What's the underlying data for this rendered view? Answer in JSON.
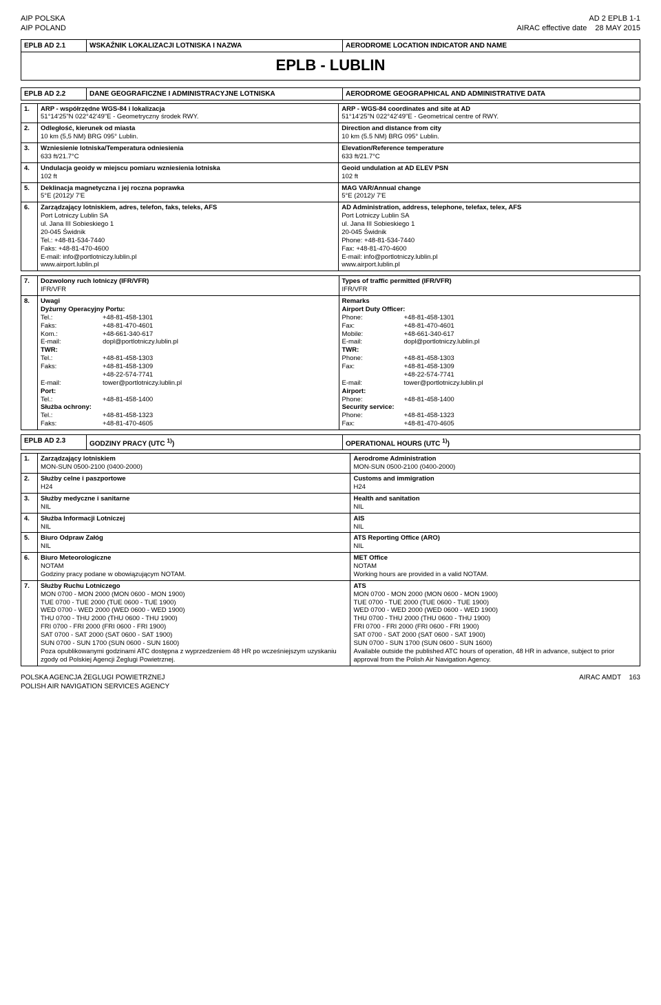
{
  "header": {
    "left1": "AIP POLSKA",
    "left2": "AIP POLAND",
    "right1": "AD 2 EPLB 1-1",
    "right2a": "AIRAC effective date",
    "right2b": "28 MAY 2015"
  },
  "section21": {
    "code": "EPLB  AD 2.1",
    "title_pl": "WSKAŹNIK LOKALIZACJI LOTNISKA I NAZWA",
    "title_en": "AERODROME LOCATION INDICATOR AND NAME",
    "big": "EPLB - LUBLIN"
  },
  "section22": {
    "code": "EPLB  AD 2.2",
    "title_pl": "DANE GEOGRAFICZNE I ADMINISTRACYJNE LOTNISKA",
    "title_en": "AERODROME GEOGRAPHICAL AND ADMINISTRATIVE DATA",
    "rows": [
      {
        "n": "1.",
        "pl_h": "ARP - współrzędne WGS-84 i lokalizacja",
        "pl_v": "51°14'25\"N  022°42'49\"E  -  Geometryczny środek RWY.",
        "en_h": "ARP - WGS-84 coordinates and site at AD",
        "en_v": "51°14'25\"N  022°42'49\"E  -  Geometrical centre of RWY."
      },
      {
        "n": "2.",
        "pl_h": "Odległość, kierunek od miasta",
        "pl_v": "10 km (5,5 NM) BRG 095° Lublin.",
        "en_h": "Direction and distance from city",
        "en_v": "10 km (5.5 NM) BRG 095° Lublin."
      },
      {
        "n": "3.",
        "pl_h": "Wzniesienie lotniska/Temperatura odniesienia",
        "pl_v": "633 ft/21.7°C",
        "en_h": "Elevation/Reference temperature",
        "en_v": "633 ft/21.7°C"
      },
      {
        "n": "4.",
        "pl_h": "Undulacja geoidy w miejscu pomiaru wzniesienia lotniska",
        "pl_v": "102 ft",
        "en_h": "Geoid undulation at AD ELEV PSN",
        "en_v": "102 ft"
      },
      {
        "n": "5.",
        "pl_h": "Deklinacja magnetyczna i jej roczna poprawka",
        "pl_v": " 5°E (2012)/ 7'E",
        "en_h": "MAG VAR/Annual change",
        "en_v": " 5°E (2012)/ 7'E"
      }
    ],
    "row6": {
      "n": "6.",
      "pl_h": "Zarządzający lotniskiem, adres, telefon, faks, teleks, AFS",
      "en_h": "AD Administration, address, telephone, telefax, telex, AFS",
      "pl_lines": [
        "Port Lotniczy Lublin SA",
        "ul. Jana III Sobieskiego 1",
        "20-045 Świdnik",
        "Tel.: +48-81-534-7440",
        "Faks: +48-81-470-4600",
        "E-mail: info@portlotniczy.lublin.pl",
        "www.airport.lublin.pl"
      ],
      "en_lines": [
        "Port Lotniczy Lublin SA",
        "ul. Jana III Sobieskiego 1",
        "20-045 Świdnik",
        "Phone: +48-81-534-7440",
        "Fax: +48-81-470-4600",
        "E-mail: info@portlotniczy.lublin.pl",
        "www.airport.lublin.pl"
      ]
    },
    "row7": {
      "n": "7.",
      "pl_h": "Dozwolony ruch lotniczy (IFR/VFR)",
      "pl_v": "IFR/VFR",
      "en_h": "Types of traffic permitted (IFR/VFR)",
      "en_v": "IFR/VFR"
    },
    "row8": {
      "n": "8.",
      "pl_h": "Uwagi",
      "en_h": "Remarks",
      "pl": {
        "duty_h": "Dyżurny Operacyjny Portu:",
        "c1": [
          [
            "Tel.:",
            "+48-81-458-1301"
          ],
          [
            "Faks:",
            "+48-81-470-4601"
          ],
          [
            "Kom.:",
            "+48-661-340-617"
          ],
          [
            "E-mail:",
            "dopl@portlotniczy.lublin.pl"
          ]
        ],
        "twr_h": "TWR:",
        "c2": [
          [
            "Tel.:",
            "+48-81-458-1303"
          ],
          [
            "Faks:",
            "+48-81-458-1309"
          ],
          [
            "",
            "+48-22-574-7741"
          ],
          [
            "E-mail:",
            "tower@portlotniczy.lublin.pl"
          ]
        ],
        "port_h": "Port:",
        "c3": [
          [
            "Tel.:",
            "+48-81-458-1400"
          ]
        ],
        "sec_h": "Służba ochrony:",
        "c4": [
          [
            "Tel.:",
            "+48-81-458-1323"
          ],
          [
            "Faks:",
            "+48-81-470-4605"
          ]
        ]
      },
      "en": {
        "duty_h": "Airport Duty Officer:",
        "c1": [
          [
            "Phone:",
            "+48-81-458-1301"
          ],
          [
            "Fax:",
            "+48-81-470-4601"
          ],
          [
            "Mobile:",
            "+48-661-340-617"
          ],
          [
            "E-mail:",
            "dopl@portlotniczy.lublin.pl"
          ]
        ],
        "twr_h": "TWR:",
        "c2": [
          [
            "Phone:",
            "+48-81-458-1303"
          ],
          [
            "Fax:",
            "+48-81-458-1309"
          ],
          [
            "",
            "+48-22-574-7741"
          ],
          [
            "E-mail:",
            "tower@portlotniczy.lublin.pl"
          ]
        ],
        "port_h": "Airport:",
        "c3": [
          [
            "Phone:",
            "+48-81-458-1400"
          ]
        ],
        "sec_h": "Security service:",
        "c4": [
          [
            "Phone:",
            "+48-81-458-1323"
          ],
          [
            "Fax:",
            "+48-81-470-4605"
          ]
        ]
      }
    }
  },
  "section23": {
    "code": "EPLB  AD 2.3",
    "title_pl": "GODZINY PRACY (UTC ",
    "title_en": "OPERATIONAL HOURS (UTC ",
    "sup": "1)",
    "sup_close": ")",
    "rows": [
      {
        "n": "1.",
        "pl_h": "Zarządzający lotniskiem",
        "pl_v": "MON-SUN 0500-2100 (0400-2000)",
        "en_h": "Aerodrome Administration",
        "en_v": "MON-SUN 0500-2100 (0400-2000)"
      },
      {
        "n": "2.",
        "pl_h": "Służby celne i paszportowe",
        "pl_v": "H24",
        "en_h": "Customs and immigration",
        "en_v": "H24"
      },
      {
        "n": "3.",
        "pl_h": "Służby medyczne i sanitarne",
        "pl_v": "NIL",
        "en_h": "Health and sanitation",
        "en_v": "NIL"
      },
      {
        "n": "4.",
        "pl_h": "Służba Informacji Lotniczej",
        "pl_v": "NIL",
        "en_h": "AIS",
        "en_v": "NIL"
      },
      {
        "n": "5.",
        "pl_h": "Biuro Odpraw Załóg",
        "pl_v": "NIL",
        "en_h": "ATS Reporting Office (ARO)",
        "en_v": "NIL"
      },
      {
        "n": "6.",
        "pl_h": "Biuro Meteorologiczne",
        "pl_v": "NOTAM\nGodziny pracy podane w obowiązującym NOTAM.",
        "en_h": "MET Office",
        "en_v": "NOTAM\nWorking hours are provided in a valid NOTAM."
      }
    ],
    "row7": {
      "n": "7.",
      "pl_h": "Służby Ruchu Lotniczego",
      "en_h": "ATS",
      "pl_lines": [
        "MON 0700 - MON 2000 (MON 0600 - MON 1900)",
        "TUE 0700 - TUE 2000 (TUE 0600 - TUE 1900)",
        "WED 0700 - WED 2000 (WED 0600 - WED 1900)",
        "THU 0700 - THU 2000 (THU 0600 - THU 1900)",
        "FRI 0700 - FRI 2000 (FRI 0600 - FRI 1900)",
        "SAT 0700 - SAT 2000 (SAT 0600 - SAT 1900)",
        "SUN 0700 - SUN 1700 (SUN 0600 - SUN 1600)",
        "Poza opublikowanymi godzinami ATC dostępna z wyprzedzeniem 48 HR po wcześniejszym uzyskaniu zgody od Polskiej Agencji Żeglugi Powietrznej."
      ],
      "en_lines": [
        "MON 0700 - MON 2000 (MON 0600 - MON 1900)",
        "TUE 0700 - TUE 2000 (TUE 0600 - TUE 1900)",
        "WED 0700 - WED 2000 (WED 0600 - WED 1900)",
        "THU 0700 - THU 2000 (THU 0600 - THU 1900)",
        "FRI 0700 - FRI 2000 (FRI 0600 - FRI 1900)",
        "SAT 0700 - SAT 2000 (SAT 0600 - SAT 1900)",
        "SUN 0700 - SUN 1700 (SUN 0600 - SUN 1600)",
        "Available outside the published ATC hours of operation, 48 HR in advance, subject to prior approval from the Polish Air Navigation Agency."
      ]
    }
  },
  "footer": {
    "left1": "POLSKA AGENCJA ŻEGLUGI POWIETRZNEJ",
    "left2": "POLISH AIR NAVIGATION SERVICES AGENCY",
    "right1": "AIRAC AMDT",
    "right2": "163"
  }
}
